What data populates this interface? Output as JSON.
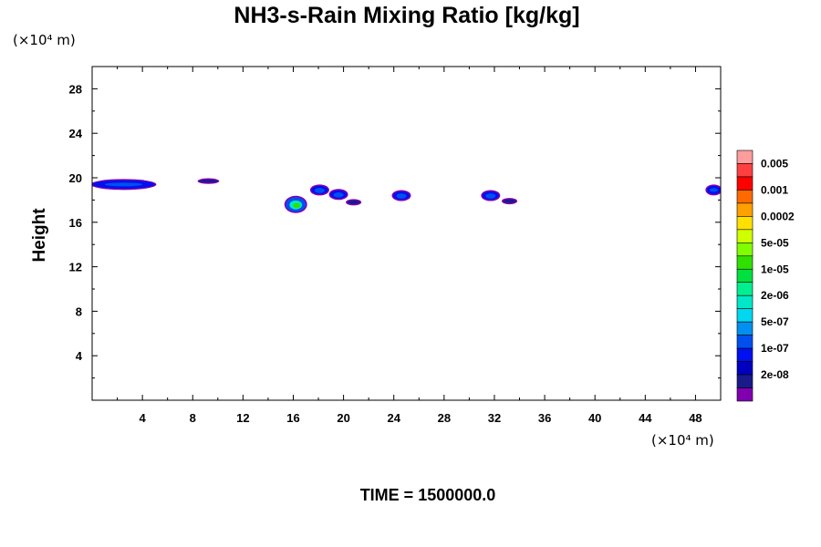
{
  "chart_data": {
    "type": "heatmap",
    "title": "NH3-s-Rain Mixing Ratio [kg/kg]",
    "ylabel": "Height",
    "x_unit_label": "(×10⁴ m)",
    "y_unit_label": "(×10⁴ m)",
    "xlim": [
      0,
      50
    ],
    "ylim": [
      0,
      30
    ],
    "x_ticks": [
      "4",
      "8",
      "12",
      "16",
      "20",
      "24",
      "28",
      "32",
      "36",
      "40",
      "44",
      "48"
    ],
    "y_ticks": [
      "4",
      "8",
      "12",
      "16",
      "20",
      "24",
      "28"
    ],
    "colorbar": {
      "labels": [
        "0.005",
        "0.001",
        "0.0002",
        "5e-05",
        "1e-05",
        "2e-06",
        "5e-07",
        "1e-07",
        "2e-08"
      ],
      "colors_top_to_bottom": [
        "#ff9c9c",
        "#ff4040",
        "#ff0000",
        "#ff6a00",
        "#ffa000",
        "#ffe000",
        "#d0ff00",
        "#80ff00",
        "#30e000",
        "#00e040",
        "#00f090",
        "#00e8c8",
        "#00d8f0",
        "#0090f0",
        "#0050f0",
        "#0010f0",
        "#0000c0",
        "#1a1a8c",
        "#8000b0"
      ]
    },
    "features": [
      {
        "x": 0.0,
        "xmax": 5.0,
        "y": 19.4,
        "level": "1e-07"
      },
      {
        "x": 8.5,
        "xmax": 10.0,
        "y": 19.7,
        "level": "2e-08"
      },
      {
        "x": 16.2,
        "y": 17.6,
        "level": "2e-06"
      },
      {
        "x": 18.1,
        "y": 18.9,
        "level": "1e-07"
      },
      {
        "x": 19.6,
        "y": 18.5,
        "level": "1e-07"
      },
      {
        "x": 20.8,
        "y": 17.8,
        "level": "2e-08"
      },
      {
        "x": 24.6,
        "y": 18.4,
        "level": "1e-07"
      },
      {
        "x": 31.7,
        "y": 18.4,
        "level": "1e-07"
      },
      {
        "x": 33.2,
        "y": 17.9,
        "level": "2e-08"
      },
      {
        "x": 48.9,
        "xmax": 50.0,
        "y": 18.9,
        "level": "1e-07"
      }
    ]
  },
  "footer": {
    "time_label": "TIME = 1500000.0"
  }
}
